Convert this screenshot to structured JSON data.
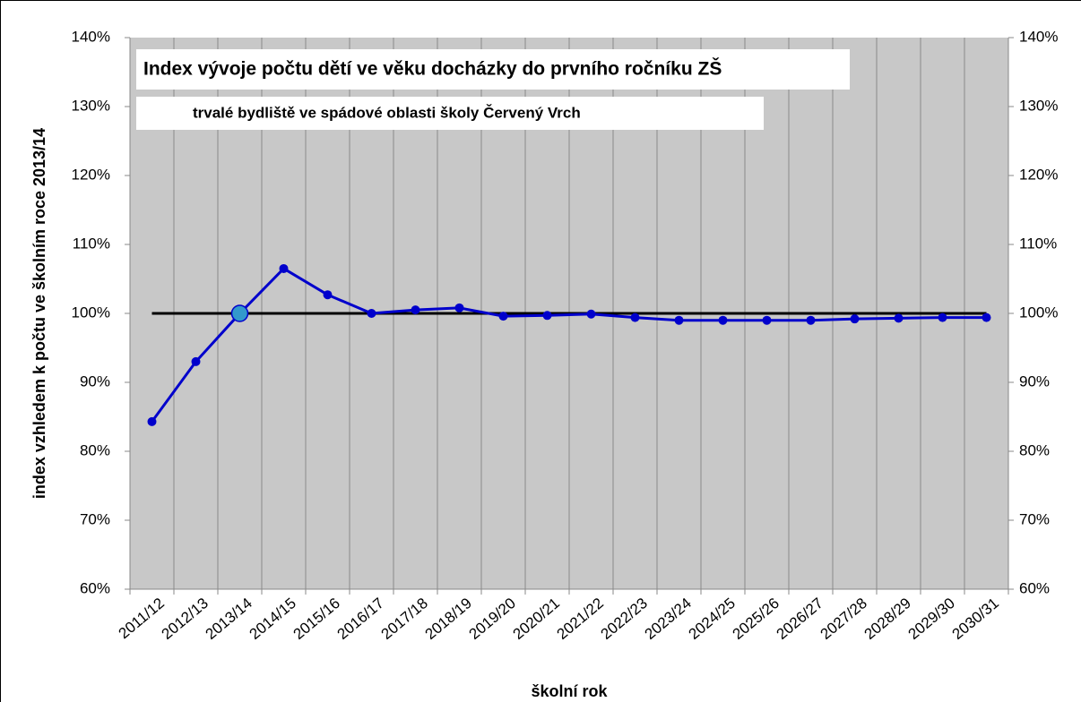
{
  "chart_data": {
    "type": "line",
    "title": "Index vývoje počtu dětí ve věku docházky do prvního ročníku ZŠ",
    "subtitle": "trvalé bydliště ve spádové oblasti školy Červený Vrch",
    "y_label": "index vzhledem k počtu ve školním roce 2013/14",
    "x_label": "školní rok",
    "categories": [
      "2011/12",
      "2012/13",
      "2013/14",
      "2014/15",
      "2015/16",
      "2016/17",
      "2017/18",
      "2018/19",
      "2019/20",
      "2020/21",
      "2021/22",
      "2022/23",
      "2023/24",
      "2024/25",
      "2025/26",
      "2026/27",
      "2027/28",
      "2028/29",
      "2029/30",
      "2030/31"
    ],
    "values": [
      84.3,
      93.0,
      100,
      106.5,
      102.7,
      100.0,
      100.5,
      100.8,
      99.6,
      99.7,
      99.9,
      99.4,
      99.0,
      99.0,
      99.0,
      99.0,
      99.2,
      99.3,
      99.4,
      99.4
    ],
    "color": "#0000cc",
    "highlight_category": "2013/14",
    "highlight_color": "#3399cc",
    "reference_line": {
      "value": 100,
      "color": "#000000"
    },
    "ylim": [
      60,
      140
    ],
    "yticks": [
      {
        "value": 60,
        "label": "60%"
      },
      {
        "value": 70,
        "label": "70%"
      },
      {
        "value": 80,
        "label": "80%"
      },
      {
        "value": 90,
        "label": "90%"
      },
      {
        "value": 100,
        "label": "100%"
      },
      {
        "value": 110,
        "label": "110%"
      },
      {
        "value": 120,
        "label": "120%"
      },
      {
        "value": 130,
        "label": "130%"
      },
      {
        "value": 140,
        "label": "140%"
      }
    ],
    "y2lim": [
      60,
      140
    ],
    "y2ticks": [
      {
        "value": 60,
        "label": "60%"
      },
      {
        "value": 70,
        "label": "70%"
      },
      {
        "value": 80,
        "label": "80%"
      },
      {
        "value": 90,
        "label": "90%"
      },
      {
        "value": 100,
        "label": "100%"
      },
      {
        "value": 110,
        "label": "110%"
      },
      {
        "value": 120,
        "label": "120%"
      },
      {
        "value": 130,
        "label": "130%"
      },
      {
        "value": 140,
        "label": "140%"
      }
    ],
    "xgrid": true
  }
}
